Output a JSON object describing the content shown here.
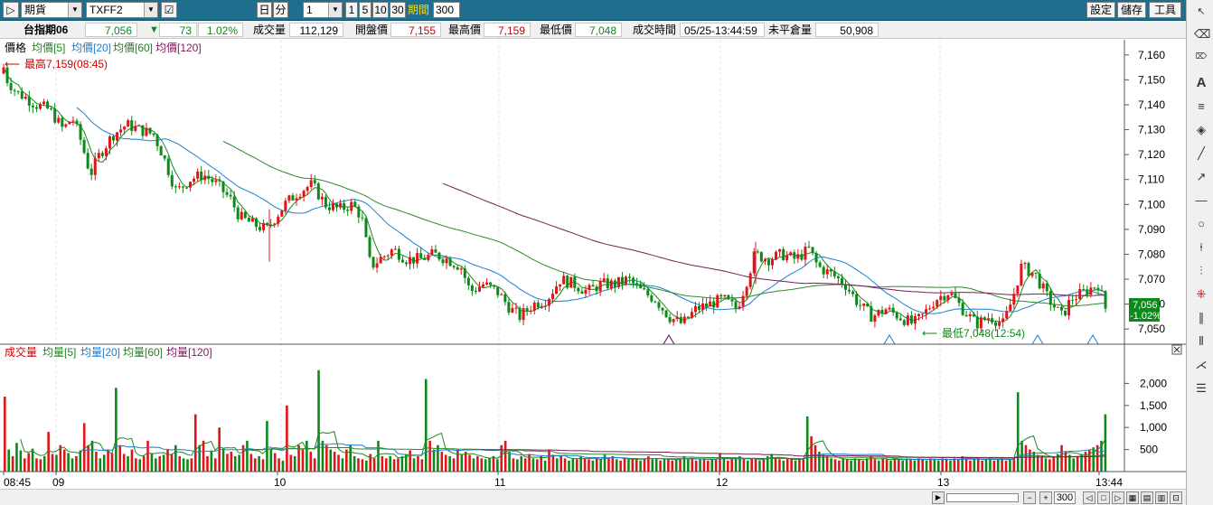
{
  "toolbar": {
    "market": "期貨",
    "symbol": "TXFF2",
    "period_day": "日",
    "period_min": "分",
    "interval_value": "1",
    "interval_opts": [
      "1",
      "5",
      "10",
      "30"
    ],
    "period_label": "期間",
    "period_value": "300",
    "settings": "設定",
    "save": "儲存",
    "tools": "工具"
  },
  "info": {
    "name": "台指期06",
    "price": "7,056",
    "arrow": "▼",
    "change": "73",
    "pct": "1.02%",
    "vol_label": "成交量",
    "vol": "112,129",
    "open_label": "開盤價",
    "open": "7,155",
    "high_label": "最高價",
    "high": "7,159",
    "low_label": "最低價",
    "low": "7,048",
    "time_label": "成交時間",
    "time": "05/25-13:44:59",
    "oi_label": "未平倉量",
    "oi": "50,908"
  },
  "legend_price": {
    "title": "價格",
    "ma5": "均價[5]",
    "ma20": "均價[20]",
    "ma60": "均價[60]",
    "ma120": "均價[120]"
  },
  "legend_vol": {
    "title": "成交量",
    "ma5": "均量[5]",
    "ma20": "均量[20]",
    "ma60": "均量[60]",
    "ma120": "均量[120]"
  },
  "annotations": {
    "high": "最高7,159(08:45)",
    "low": "最低7,048(12:54)",
    "last_price": "7,056",
    "last_pct": "-1.02%"
  },
  "colors": {
    "up": "#e0151a",
    "down": "#0b8a1a",
    "ma5": "#1a8a1a",
    "ma20": "#1a7fd0",
    "ma60": "#2a8a2a",
    "ma120": "#7a1a5a",
    "toolbar": "#1e6f8e"
  },
  "chart_data": [
    {
      "type": "candlestick",
      "title": "價格",
      "ylim": [
        7045,
        7165
      ],
      "yticks": [
        "7,160",
        "7,150",
        "7,140",
        "7,130",
        "7,120",
        "7,110",
        "7,100",
        "7,090",
        "7,080",
        "7,070",
        "7,060",
        "7,050"
      ],
      "xticks": [
        "08:45",
        "09",
        "10",
        "11",
        "12",
        "13",
        "13:44"
      ],
      "series": [
        {
          "name": "均價[5]",
          "values": []
        },
        {
          "name": "均價[20]",
          "values": []
        },
        {
          "name": "均價[60]",
          "values": []
        },
        {
          "name": "均價[120]",
          "values": []
        }
      ],
      "path_points": [
        [
          0,
          7155
        ],
        [
          8,
          7150
        ],
        [
          18,
          7145
        ],
        [
          28,
          7143
        ],
        [
          40,
          7140
        ],
        [
          55,
          7138
        ],
        [
          70,
          7130
        ],
        [
          80,
          7135
        ],
        [
          90,
          7125
        ],
        [
          100,
          7112
        ],
        [
          110,
          7120
        ],
        [
          125,
          7128
        ],
        [
          140,
          7132
        ],
        [
          155,
          7130
        ],
        [
          170,
          7128
        ],
        [
          180,
          7120
        ],
        [
          195,
          7105
        ],
        [
          210,
          7110
        ],
        [
          225,
          7112
        ],
        [
          240,
          7108
        ],
        [
          255,
          7102
        ],
        [
          265,
          7095
        ],
        [
          280,
          7092
        ],
        [
          295,
          7090
        ],
        [
          305,
          7095
        ],
        [
          315,
          7100
        ],
        [
          330,
          7105
        ],
        [
          345,
          7108
        ],
        [
          360,
          7100
        ],
        [
          375,
          7098
        ],
        [
          390,
          7100
        ],
        [
          400,
          7095
        ],
        [
          410,
          7075
        ],
        [
          420,
          7078
        ],
        [
          435,
          7082
        ],
        [
          450,
          7078
        ],
        [
          465,
          7078
        ],
        [
          480,
          7080
        ],
        [
          495,
          7078
        ],
        [
          510,
          7075
        ],
        [
          520,
          7065
        ],
        [
          535,
          7068
        ],
        [
          550,
          7065
        ],
        [
          565,
          7058
        ],
        [
          575,
          7055
        ],
        [
          590,
          7060
        ],
        [
          605,
          7062
        ],
        [
          620,
          7070
        ],
        [
          635,
          7068
        ],
        [
          650,
          7065
        ],
        [
          665,
          7068
        ],
        [
          680,
          7068
        ],
        [
          695,
          7070
        ],
        [
          710,
          7065
        ],
        [
          725,
          7062
        ],
        [
          740,
          7055
        ],
        [
          755,
          7052
        ],
        [
          770,
          7058
        ],
        [
          785,
          7060
        ],
        [
          800,
          7062
        ],
        [
          815,
          7058
        ],
        [
          825,
          7068
        ],
        [
          835,
          7080
        ],
        [
          850,
          7078
        ],
        [
          865,
          7080
        ],
        [
          880,
          7078
        ],
        [
          895,
          7082
        ],
        [
          905,
          7075
        ],
        [
          920,
          7072
        ],
        [
          935,
          7068
        ],
        [
          950,
          7060
        ],
        [
          965,
          7055
        ],
        [
          980,
          7058
        ],
        [
          995,
          7055
        ],
        [
          1010,
          7052
        ],
        [
          1020,
          7055
        ],
        [
          1035,
          7062
        ],
        [
          1050,
          7065
        ],
        [
          1065,
          7058
        ],
        [
          1080,
          7052
        ],
        [
          1095,
          7055
        ],
        [
          1110,
          7052
        ],
        [
          1120,
          7062
        ],
        [
          1130,
          7075
        ],
        [
          1145,
          7072
        ],
        [
          1160,
          7062
        ],
        [
          1175,
          7055
        ],
        [
          1185,
          7062
        ],
        [
          1200,
          7065
        ],
        [
          1215,
          7068
        ],
        [
          1225,
          7056
        ]
      ]
    },
    {
      "type": "bar",
      "title": "成交量",
      "ylim": [
        0,
        2500
      ],
      "yticks": [
        "2,000",
        "1,500",
        "1,000",
        "500"
      ],
      "xticks": [
        "08:45",
        "09",
        "10",
        "11",
        "12",
        "13",
        "13:44"
      ],
      "series": [
        {
          "name": "均量[5]",
          "values": []
        },
        {
          "name": "均量[20]",
          "values": []
        },
        {
          "name": "均量[60]",
          "values": []
        },
        {
          "name": "均量[120]",
          "values": []
        }
      ],
      "values": [
        1700,
        500,
        350,
        650,
        480,
        300,
        420,
        520,
        300,
        280,
        350,
        900,
        400,
        380,
        600,
        500,
        420,
        300,
        350,
        480,
        1100,
        600,
        700,
        450,
        300,
        380,
        500,
        420,
        1900,
        600,
        400,
        350,
        500,
        300,
        280,
        350,
        700,
        420,
        300,
        350,
        380,
        500,
        400,
        600,
        350,
        300,
        280,
        300,
        1300,
        600,
        700,
        350,
        480,
        300,
        1000,
        520,
        400,
        450,
        350,
        380,
        600,
        700,
        400,
        300,
        350,
        280,
        1150,
        500,
        420,
        300,
        250,
        1500,
        380,
        350,
        600,
        500,
        700,
        450,
        300,
        2300,
        700,
        600,
        500,
        450,
        380,
        300,
        500,
        600,
        350,
        300,
        280,
        250,
        400,
        300,
        700,
        350,
        300,
        350,
        280,
        300,
        350,
        400,
        480,
        300,
        350,
        280,
        2100,
        700,
        500,
        600,
        450,
        380,
        350,
        300,
        500,
        400,
        450,
        380,
        300,
        350,
        300,
        280,
        300,
        350,
        280,
        600,
        700,
        450,
        300,
        280,
        350,
        300,
        400,
        300,
        280,
        350,
        250,
        500,
        380,
        300,
        350,
        300,
        250,
        300,
        280,
        350,
        300,
        280,
        250,
        300,
        280,
        380,
        300,
        350,
        280,
        250,
        300,
        280,
        300,
        280,
        250,
        300,
        350,
        280,
        300,
        250,
        280,
        300,
        250,
        280,
        300,
        350,
        280,
        300,
        250,
        280,
        300,
        250,
        300,
        280,
        400,
        300,
        250,
        280,
        300,
        350,
        280,
        250,
        300,
        280,
        250,
        300,
        350,
        400,
        300,
        280,
        250,
        300,
        280,
        250,
        300,
        280,
        1250,
        800,
        600,
        450,
        380,
        350,
        300,
        280,
        250,
        300,
        280,
        250,
        300,
        280,
        250,
        300,
        350,
        280,
        250,
        300,
        280,
        250,
        300,
        280,
        250,
        300,
        280,
        250,
        300,
        280,
        250,
        300,
        280,
        250,
        300,
        280,
        250,
        300,
        280,
        350,
        300,
        250,
        280,
        300,
        250,
        280,
        300,
        250,
        280,
        300,
        250,
        280,
        300,
        1800,
        700,
        600,
        500,
        450,
        380,
        350,
        300,
        280,
        350,
        400,
        600,
        450,
        380,
        300,
        350,
        400,
        450,
        500,
        550,
        600,
        700,
        1300
      ]
    }
  ]
}
